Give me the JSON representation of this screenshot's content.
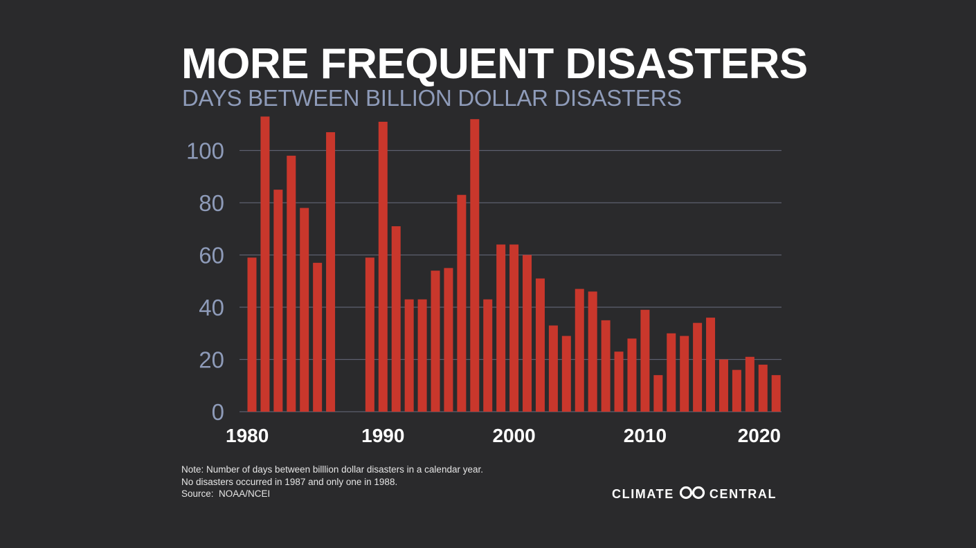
{
  "header": {
    "title": "MORE FREQUENT DISASTERS",
    "subtitle": "DAYS BETWEEN BILLION DOLLAR DISASTERS"
  },
  "notes": {
    "line1": "Note: Number of days between billlion dollar disasters in a calendar year.",
    "line2": "No disasters occurred in 1987 and only one in 1988.",
    "source_label": "Source:",
    "source_value": "NOAA/NCEI"
  },
  "logo": {
    "left_text": "CLIMATE",
    "right_text": "CENTRAL",
    "icon": "double-ring-logo-icon"
  },
  "colors": {
    "background": "#2a2a2c",
    "bar": "#c9372c",
    "grid": "#5e6170",
    "axis_text": "#8e9bb9",
    "title": "#ffffff"
  },
  "chart_data": {
    "type": "bar",
    "title": "MORE FREQUENT DISASTERS",
    "subtitle": "DAYS BETWEEN BILLION DOLLAR DISASTERS",
    "xlabel": "",
    "ylabel": "",
    "ylim": [
      0,
      112
    ],
    "grid": true,
    "yticks": [
      0,
      20,
      40,
      60,
      80,
      100
    ],
    "xticks": [
      1980,
      1990,
      2000,
      2010,
      2020
    ],
    "categories": [
      1980,
      1981,
      1982,
      1983,
      1984,
      1985,
      1986,
      1987,
      1988,
      1989,
      1990,
      1991,
      1992,
      1993,
      1994,
      1995,
      1996,
      1997,
      1998,
      1999,
      2000,
      2001,
      2002,
      2003,
      2004,
      2005,
      2006,
      2007,
      2008,
      2009,
      2010,
      2011,
      2012,
      2013,
      2014,
      2015,
      2016,
      2017,
      2018,
      2019,
      2020
    ],
    "values": [
      59,
      113,
      85,
      98,
      78,
      57,
      107,
      null,
      null,
      59,
      111,
      71,
      43,
      43,
      54,
      55,
      83,
      112,
      43,
      64,
      64,
      60,
      51,
      33,
      29,
      47,
      46,
      35,
      23,
      28,
      39,
      14,
      30,
      29,
      34,
      36,
      20,
      16,
      21,
      18,
      14
    ]
  }
}
